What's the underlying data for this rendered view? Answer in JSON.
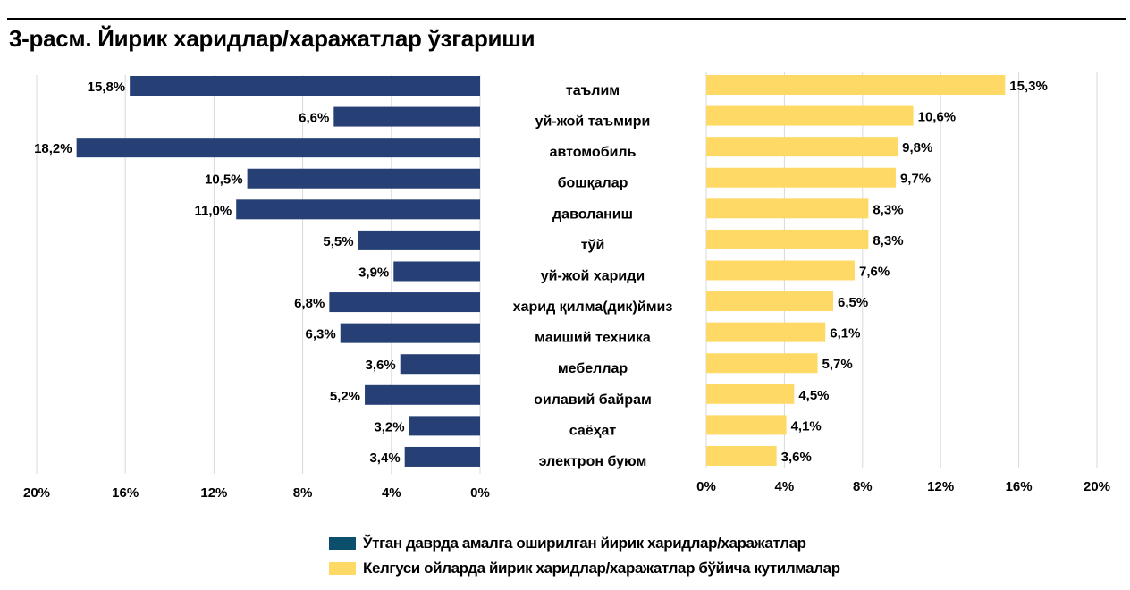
{
  "title": "3-расм. Йирик харидлар/харажатлар ўзгариши",
  "colors": {
    "past": "#263F75",
    "future": "#FFD966",
    "legend_past": "#0B4F6C",
    "grid": "#D9D9D9"
  },
  "chart_data": [
    {
      "type": "bar",
      "orientation": "horizontal",
      "direction": "reversed",
      "series": [
        {
          "name": "Ўтган даврда амалга оширилган йирик харидлар/харажатлар",
          "values": [
            15.8,
            6.6,
            18.2,
            10.5,
            11.0,
            5.5,
            3.9,
            6.8,
            6.3,
            3.6,
            5.2,
            3.2,
            3.4
          ]
        }
      ],
      "data_labels": [
        "15,8%",
        "6,6%",
        "18,2%",
        "10,5%",
        "11,0%",
        "5,5%",
        "3,9%",
        "6,8%",
        "6,3%",
        "3,6%",
        "5,2%",
        "3,2%",
        "3,4%"
      ],
      "xlim": [
        0,
        20
      ],
      "x_ticks": [
        "20%",
        "16%",
        "12%",
        "8%",
        "4%",
        "0%"
      ],
      "grid": true
    },
    {
      "type": "bar",
      "orientation": "horizontal",
      "categories": [
        "таълим",
        "уй-жой таъмири",
        "автомобиль",
        "бошқалар",
        "даволаниш",
        "тўй",
        "уй-жой хариди",
        "харид қилма(дик)ймиз",
        "маиший техника",
        "мебеллар",
        "оилавий байрам",
        "саёҳат",
        "электрон буюм"
      ],
      "series": [
        {
          "name": "Келгуси ойларда йирик харидлар/харажатлар бўйича кутилмалар",
          "values": [
            15.3,
            10.6,
            9.8,
            9.7,
            8.3,
            8.3,
            7.6,
            6.5,
            6.1,
            5.7,
            4.5,
            4.1,
            3.6
          ]
        }
      ],
      "data_labels": [
        "15,3%",
        "10,6%",
        "9,8%",
        "9,7%",
        "8,3%",
        "8,3%",
        "7,6%",
        "6,5%",
        "6,1%",
        "5,7%",
        "4,5%",
        "4,1%",
        "3,6%"
      ],
      "xlim": [
        0,
        20
      ],
      "x_ticks": [
        "0%",
        "4%",
        "8%",
        "12%",
        "16%",
        "20%"
      ],
      "grid": true
    }
  ],
  "legend": {
    "placement": "bottom",
    "past": "Ўтган даврда амалга оширилган йирик харидлар/харажатлар",
    "future": "Келгуси ойларда йирик харидлар/харажатлар бўйича кутилмалар"
  }
}
